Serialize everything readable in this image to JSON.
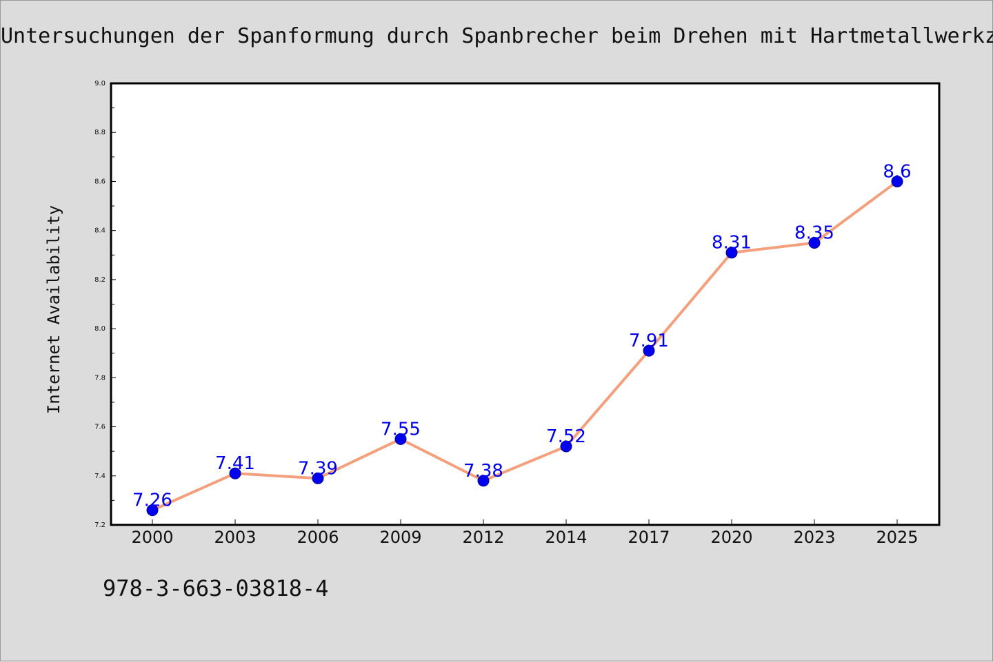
{
  "title": "Untersuchungen der Spanformung durch Spanbrecher beim Drehen mit Hartmetallwerkz",
  "footnote": "978-3-663-03818-4",
  "chart_data": {
    "type": "line",
    "title": "Untersuchungen der Spanformung durch Spanbrecher beim Drehen mit Hartmetallwerkz",
    "xlabel": "",
    "ylabel": "Internet Availability",
    "categories": [
      "2000",
      "2003",
      "2006",
      "2009",
      "2012",
      "2014",
      "2017",
      "2020",
      "2023",
      "2025"
    ],
    "series": [
      {
        "values": [
          7.26,
          7.41,
          7.39,
          7.55,
          7.38,
          7.52,
          7.91,
          8.31,
          8.35,
          8.6
        ],
        "labels": [
          "7.26",
          "7.41",
          "7.39",
          "7.55",
          "7.38",
          "7.52",
          "7.91",
          "8.31",
          "8.35",
          "8.6"
        ]
      }
    ],
    "ylim": [
      7.2,
      9.0
    ],
    "yticks": [
      "7.2",
      "7.4",
      "7.6",
      "7.8",
      "8.0",
      "8.2",
      "8.4",
      "8.6",
      "8.8",
      "9.0"
    ],
    "grid": false,
    "legend": "none",
    "colors": {
      "line": "#f4a07c",
      "marker": "#0000ee",
      "data_label": "#0000ee",
      "plot_background": "#ffffff",
      "page_background": "#dcdcdc"
    }
  }
}
